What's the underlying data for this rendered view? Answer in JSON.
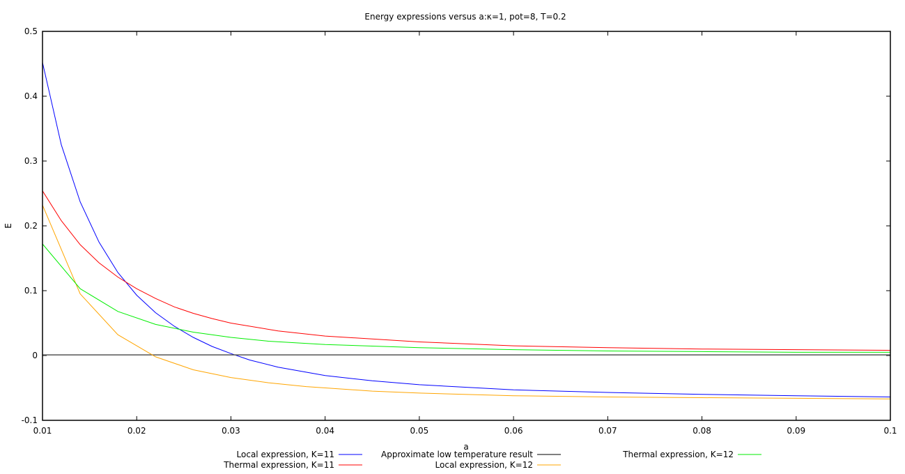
{
  "chart_data": {
    "type": "line",
    "title": "Energy expressions versus a:κ=1, pot=8, T=0.2",
    "xlabel": "a",
    "ylabel": "E",
    "xlim": [
      0.01,
      0.1
    ],
    "ylim": [
      -0.1,
      0.5
    ],
    "x_ticks": [
      "0.01",
      "0.02",
      "0.03",
      "0.04",
      "0.05",
      "0.06",
      "0.07",
      "0.08",
      "0.09",
      "0.1"
    ],
    "y_ticks": [
      "-0.1",
      "0",
      "0.1",
      "0.2",
      "0.3",
      "0.4",
      "0.5"
    ],
    "grid": false,
    "legend_position": "bottom",
    "series": [
      {
        "name": "Local expression, K=11",
        "color": "#0000ff",
        "x": [
          0.01,
          0.012,
          0.014,
          0.016,
          0.018,
          0.02,
          0.022,
          0.024,
          0.026,
          0.028,
          0.03,
          0.032,
          0.035,
          0.04,
          0.045,
          0.05,
          0.06,
          0.07,
          0.08,
          0.09,
          0.1
        ],
        "y": [
          0.452,
          0.325,
          0.237,
          0.175,
          0.128,
          0.093,
          0.066,
          0.045,
          0.028,
          0.014,
          0.003,
          -0.007,
          -0.018,
          -0.031,
          -0.039,
          -0.045,
          -0.053,
          -0.057,
          -0.06,
          -0.062,
          -0.064
        ]
      },
      {
        "name": "Thermal expression, K=11",
        "color": "#ff0000",
        "x": [
          0.01,
          0.012,
          0.014,
          0.016,
          0.018,
          0.02,
          0.022,
          0.024,
          0.026,
          0.028,
          0.03,
          0.035,
          0.04,
          0.05,
          0.06,
          0.07,
          0.08,
          0.09,
          0.1
        ],
        "y": [
          0.254,
          0.208,
          0.171,
          0.143,
          0.121,
          0.103,
          0.088,
          0.075,
          0.065,
          0.057,
          0.05,
          0.038,
          0.03,
          0.021,
          0.015,
          0.012,
          0.01,
          0.009,
          0.008
        ]
      },
      {
        "name": "Approximate low temperature result",
        "color": "#555555",
        "x": [
          0.01,
          0.1
        ],
        "y": [
          0.001,
          0.001
        ]
      },
      {
        "name": "Local expression, K=12",
        "color": "#ffa500",
        "x": [
          0.01,
          0.014,
          0.018,
          0.022,
          0.026,
          0.03,
          0.034,
          0.038,
          0.045,
          0.05,
          0.06,
          0.07,
          0.08,
          0.09,
          0.1
        ],
        "y": [
          0.232,
          0.095,
          0.032,
          -0.002,
          -0.022,
          -0.034,
          -0.042,
          -0.048,
          -0.055,
          -0.058,
          -0.062,
          -0.064,
          -0.065,
          -0.066,
          -0.067
        ]
      },
      {
        "name": "Thermal expression, K=12",
        "color": "#00ee00",
        "x": [
          0.01,
          0.014,
          0.018,
          0.022,
          0.026,
          0.03,
          0.034,
          0.04,
          0.05,
          0.06,
          0.07,
          0.08,
          0.09,
          0.1
        ],
        "y": [
          0.172,
          0.103,
          0.068,
          0.048,
          0.036,
          0.028,
          0.022,
          0.017,
          0.012,
          0.009,
          0.007,
          0.006,
          0.005,
          0.005
        ]
      }
    ]
  }
}
